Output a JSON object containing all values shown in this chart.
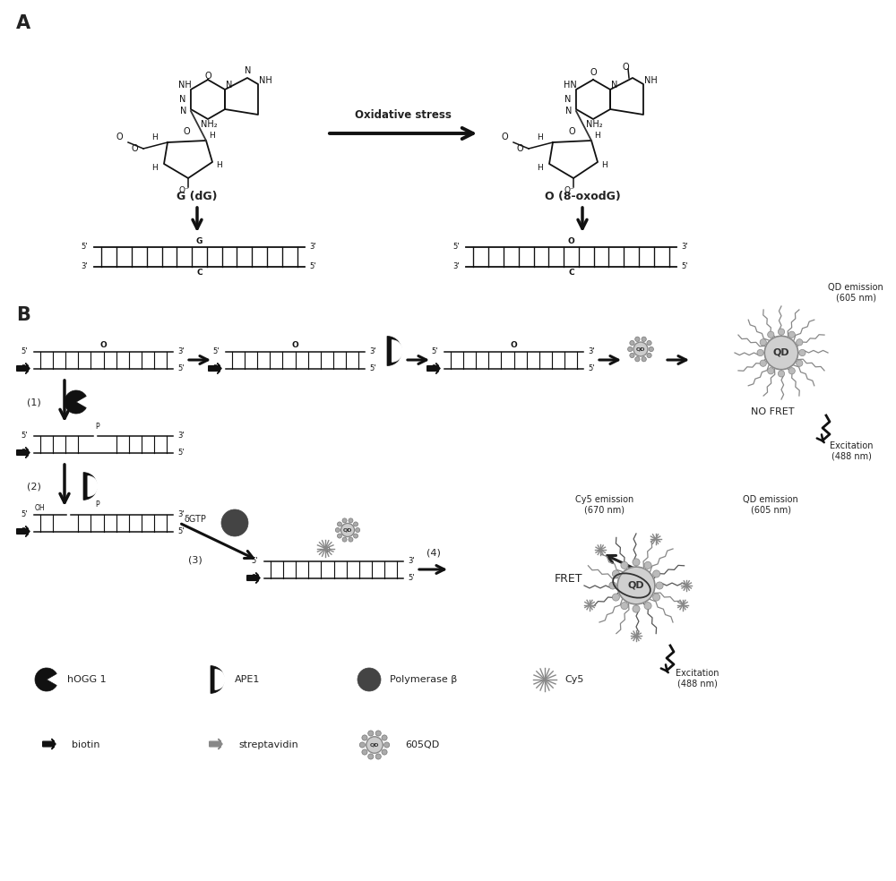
{
  "panel_A_label": "A",
  "panel_B_label": "B",
  "bg_color": "#ffffff",
  "mol1_label": "G (dG)",
  "mol2_label": "O (8-oxodG)",
  "arrow_label": "Oxidative stress",
  "step1_label": "(1)",
  "step2_label": "(2)",
  "step3_label": "(3)",
  "step4_label": "(4)",
  "hogg1_label": "hOGG 1",
  "ape1_label": "APE1",
  "polb_label": "Polymerase β",
  "cy5_label": "Cy5",
  "biotin_label": "biotin",
  "streptavidin_label": "streptavidin",
  "qd_label": "605QD",
  "no_fret_label": "NO FRET",
  "fret_label": "FRET",
  "qd_emission_top": "QD emission\n(605 nm)",
  "cy5_emission_label": "Cy5 emission\n(670 nm)",
  "qd_emission_bot": "QD emission\n(605 nm)",
  "excitation_label": "Excitation\n(488 nm)",
  "dgtp_label": "δGTP",
  "dark": "#111111",
  "gray": "#888888",
  "dgray": "#555555"
}
